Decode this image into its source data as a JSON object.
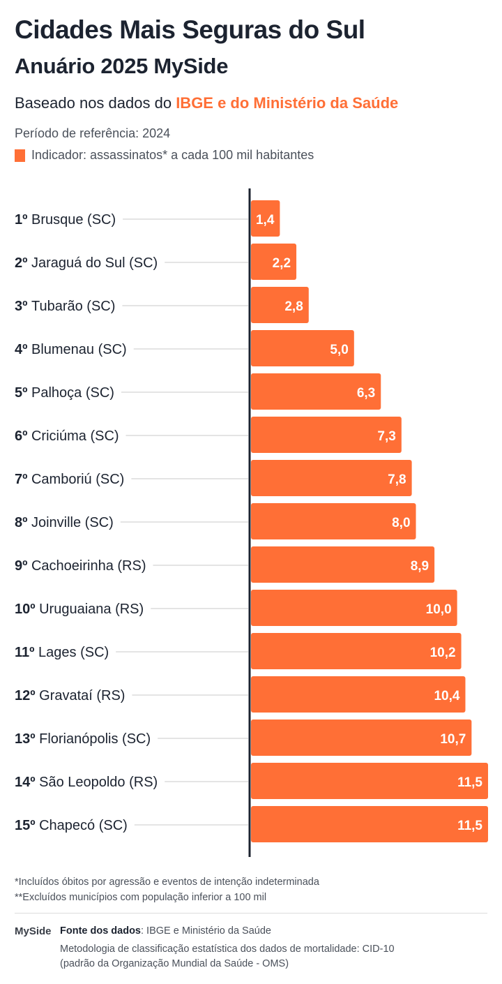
{
  "header": {
    "title": "Cidades Mais Seguras do Sul",
    "subtitle": "Anuário 2025 MySide",
    "based_prefix": "Baseado nos dados do ",
    "based_highlight": "IBGE e do Ministério da Saúde",
    "period": "Período de referência: 2024",
    "indicator": "Indicador: assassinatos* a cada 100 mil habitantes"
  },
  "colors": {
    "bar": "#ff6f36",
    "text": "#1c2330",
    "axis": "#1c2330"
  },
  "chart_data": {
    "type": "bar",
    "orientation": "horizontal",
    "categories": [
      "Brusque (SC)",
      "Jaraguá do Sul (SC)",
      "Tubarão (SC)",
      "Blumenau (SC)",
      "Palhoça (SC)",
      "Criciúma (SC)",
      "Camboriú (SC)",
      "Joinville (SC)",
      "Cachoeirinha (RS)",
      "Uruguaiana (RS)",
      "Lages (SC)",
      "Gravataí (RS)",
      "Florianópolis (SC)",
      "São Leopoldo (RS)",
      "Chapecó (SC)"
    ],
    "ranks": [
      "1º",
      "2º",
      "3º",
      "4º",
      "5º",
      "6º",
      "7º",
      "8º",
      "9º",
      "10º",
      "11º",
      "12º",
      "13º",
      "14º",
      "15º"
    ],
    "values": [
      1.4,
      2.2,
      2.8,
      5.0,
      6.3,
      7.3,
      7.8,
      8.0,
      8.9,
      10.0,
      10.2,
      10.4,
      10.7,
      11.5,
      11.5
    ],
    "value_labels": [
      "1,4",
      "2,2",
      "2,8",
      "5,0",
      "6,3",
      "7,3",
      "7,8",
      "8,0",
      "8,9",
      "10,0",
      "10,2",
      "10,4",
      "10,7",
      "11,5",
      "11,5"
    ],
    "xlim": [
      0,
      11.5
    ],
    "grid": false,
    "legend": "none"
  },
  "notes": [
    "*Incluídos óbitos por agressão e eventos de intenção indeterminada",
    "**Excluídos municípios com população inferior a 100 mil"
  ],
  "footer": {
    "logo": "MySide",
    "source_label": "Fonte dos dados",
    "source_text": ": IBGE e Ministério da Saúde",
    "method1": "Metodologia de classificação estatística dos dados de mortalidade: CID-10",
    "method2": "(padrão da Organização Mundial da Saúde - OMS)"
  }
}
